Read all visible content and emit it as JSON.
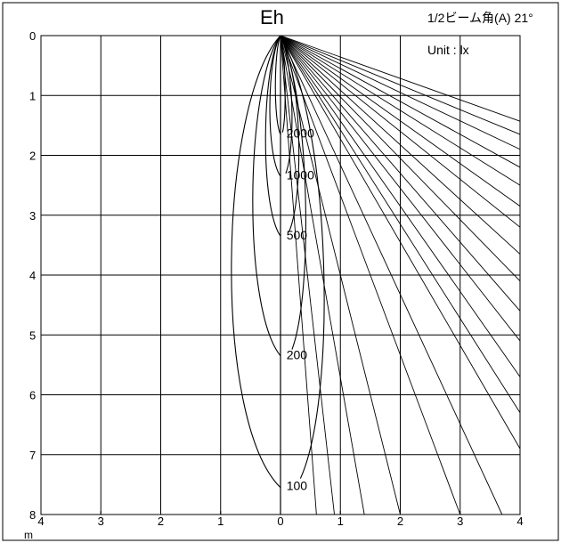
{
  "title": "Eh",
  "beam_angle_label": "1/2ビーム角(A)  21°",
  "unit_label": "Unit : lx",
  "x_axis": {
    "ticks": [
      {
        "value": 4,
        "label": "4"
      },
      {
        "value": 3,
        "label": "3"
      },
      {
        "value": 2,
        "label": "2"
      },
      {
        "value": 1,
        "label": "1"
      },
      {
        "value": 0,
        "label": "0"
      },
      {
        "value": 1,
        "label": "1"
      },
      {
        "value": 2,
        "label": "2"
      },
      {
        "value": 3,
        "label": "3"
      },
      {
        "value": 4,
        "label": "4"
      }
    ],
    "unit": "m"
  },
  "y_axis": {
    "ticks": [
      "0",
      "1",
      "2",
      "3",
      "4",
      "5",
      "6",
      "7",
      "8"
    ]
  },
  "isolux_levels": [
    "2000",
    "1000",
    "500",
    "200",
    "100"
  ],
  "colors": {
    "line": "#000000",
    "grid": "#000000",
    "background": "#ffffff"
  }
}
